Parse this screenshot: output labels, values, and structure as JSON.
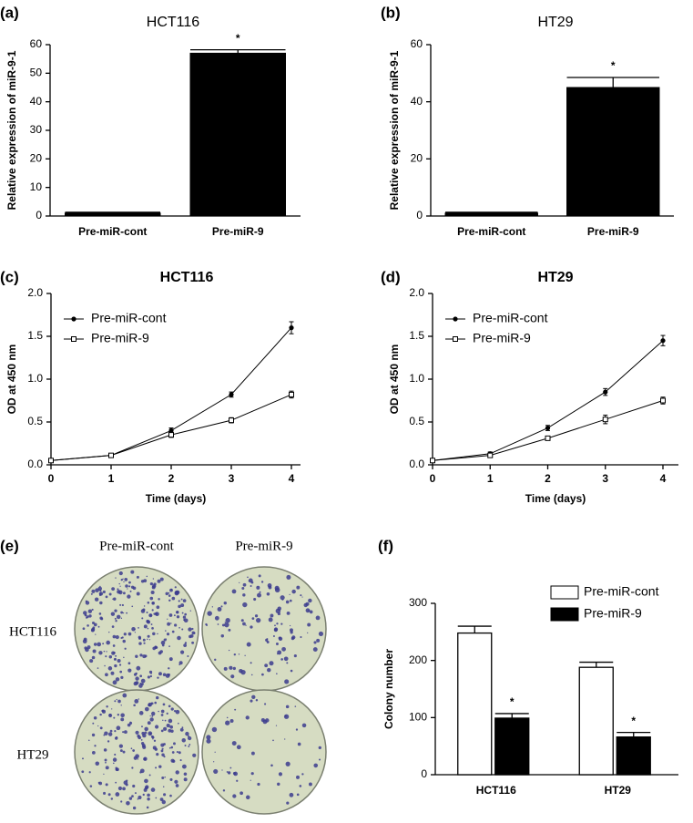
{
  "chart_data": [
    {
      "type": "bar",
      "panel_label": "(a)",
      "title": "HCT116",
      "ylabel": "Relative expression of miR-9-1",
      "categories": [
        "Pre-miR-cont",
        "Pre-miR-9"
      ],
      "values": [
        1,
        57
      ],
      "errors": [
        0.3,
        1.2
      ],
      "significance": [
        null,
        "*"
      ],
      "color": "#000000",
      "ylim": [
        0,
        60
      ],
      "yticks": [
        0,
        10,
        20,
        30,
        40,
        50,
        60
      ]
    },
    {
      "type": "bar",
      "panel_label": "(b)",
      "title": "HT29",
      "ylabel": "Relative expression of miR-9-1",
      "categories": [
        "Pre-miR-cont",
        "Pre-miR-9"
      ],
      "values": [
        1,
        45
      ],
      "errors": [
        0.3,
        3.5
      ],
      "significance": [
        null,
        "*"
      ],
      "color": "#000000",
      "ylim": [
        0,
        60
      ],
      "yticks": [
        0,
        20,
        40,
        60
      ]
    },
    {
      "type": "line",
      "panel_label": "(c)",
      "title": "HCT116",
      "xlabel": "Time (days)",
      "ylabel": "OD at 450 nm",
      "x": [
        0,
        1,
        2,
        3,
        4
      ],
      "legend": "upper left",
      "series": [
        {
          "name": "Pre-miR-cont",
          "color": "#000000",
          "marker": "filled-circle",
          "values": [
            0.05,
            0.11,
            0.4,
            0.82,
            1.6
          ],
          "errors": [
            0.01,
            0.01,
            0.03,
            0.03,
            0.07
          ]
        },
        {
          "name": "Pre-miR-9",
          "color": "#000000",
          "marker": "open-square",
          "values": [
            0.05,
            0.11,
            0.35,
            0.52,
            0.82
          ],
          "errors": [
            0.01,
            0.01,
            0.03,
            0.03,
            0.04
          ]
        }
      ],
      "xlim": [
        0,
        4
      ],
      "xticks": [
        0,
        1,
        2,
        3,
        4
      ],
      "ylim": [
        0,
        2.0
      ],
      "yticks": [
        {
          "value": 0,
          "label": "0.0"
        },
        {
          "value": 0.5,
          "label": "0.5"
        },
        {
          "value": 1,
          "label": "1.0"
        },
        {
          "value": 1.5,
          "label": "1.5"
        },
        {
          "value": 2,
          "label": "2.0"
        }
      ]
    },
    {
      "type": "line",
      "panel_label": "(d)",
      "title": "HT29",
      "xlabel": "Time (days)",
      "ylabel": "OD at 450 nm",
      "x": [
        0,
        1,
        2,
        3,
        4
      ],
      "legend": "upper left",
      "series": [
        {
          "name": "Pre-miR-cont",
          "color": "#000000",
          "marker": "filled-circle",
          "values": [
            0.05,
            0.13,
            0.43,
            0.85,
            1.45
          ],
          "errors": [
            0.01,
            0.02,
            0.03,
            0.04,
            0.06
          ]
        },
        {
          "name": "Pre-miR-9",
          "color": "#000000",
          "marker": "open-square",
          "values": [
            0.05,
            0.11,
            0.31,
            0.53,
            0.75
          ],
          "errors": [
            0.01,
            0.01,
            0.02,
            0.05,
            0.04
          ]
        }
      ],
      "xlim": [
        0,
        4
      ],
      "xticks": [
        0,
        1,
        2,
        3,
        4
      ],
      "ylim": [
        0,
        2.0
      ],
      "yticks": [
        {
          "value": 0,
          "label": "0.0"
        },
        {
          "value": 0.5,
          "label": "0.5"
        },
        {
          "value": 1,
          "label": "1.0"
        },
        {
          "value": 1.5,
          "label": "1.5"
        },
        {
          "value": 2,
          "label": "2.0"
        }
      ]
    },
    {
      "type": "grouped-bar",
      "panel_label": "(f)",
      "ylabel": "Colony number",
      "legend": "upper right",
      "categories": [
        "HCT116",
        "HT29"
      ],
      "series": [
        {
          "name": "Pre-miR-cont",
          "color": "#ffffff",
          "values": [
            248,
            188
          ],
          "errors": [
            12,
            9
          ]
        },
        {
          "name": "Pre-miR-9",
          "color": "#000000",
          "values": [
            99,
            66
          ],
          "errors": [
            8,
            8
          ],
          "significance": [
            "*",
            "*"
          ]
        }
      ],
      "ylim": [
        0,
        300
      ],
      "yticks": [
        0,
        100,
        200,
        300
      ]
    }
  ],
  "image_panel": {
    "panel_label": "(e)",
    "columns": [
      "Pre-miR-cont",
      "Pre-miR-9"
    ],
    "rows": [
      "HCT116",
      "HT29"
    ]
  }
}
